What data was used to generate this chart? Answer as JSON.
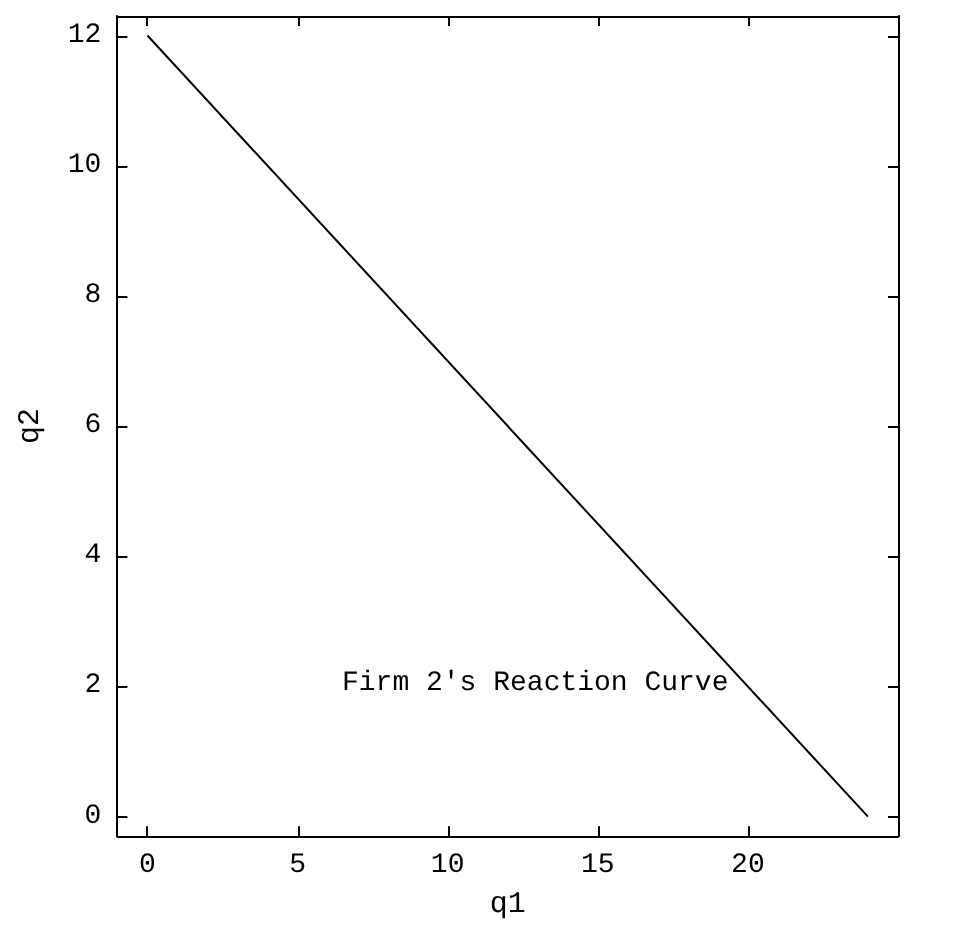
{
  "chart_data": {
    "type": "line",
    "xlabel": "q1",
    "ylabel": "q2",
    "x": [
      0,
      24
    ],
    "values": [
      12,
      0
    ],
    "color": "#000000",
    "xlim": [
      -1,
      25
    ],
    "ylim": [
      -0.3,
      12.3
    ],
    "xticks": [
      0,
      5,
      10,
      15,
      20
    ],
    "yticks": [
      0,
      2,
      4,
      6,
      8,
      10,
      12
    ],
    "grid": false,
    "marker": "none",
    "annotations": [
      "Firm 2's Reaction Curve"
    ]
  }
}
